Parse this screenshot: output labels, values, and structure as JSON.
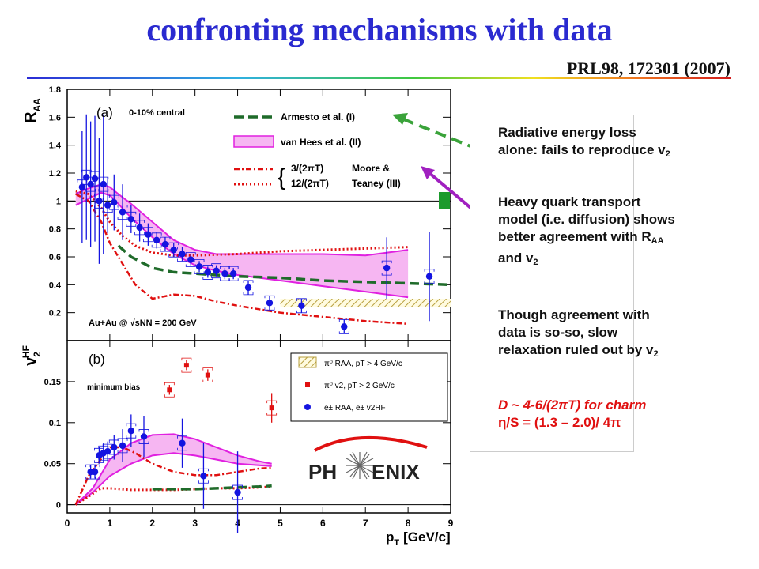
{
  "header": {
    "title": "confronting mechanisms with data",
    "reference": "PRL98, 172301 (2007)"
  },
  "annotations": {
    "note1_line1": "Radiative energy loss",
    "note1_line2": "alone:  fails to reproduce v",
    "note1_sub": "2",
    "note2_line1": "Heavy quark transport",
    "note2_line2": "model (i.e. diffusion) shows",
    "note2_line3": "better agreement with R",
    "note2_sub_raa": "AA",
    "note2_line4": "and v",
    "note2_sub_v2": "2",
    "note3_line1": "Though agreement with",
    "note3_line2": "data is so-so, slow",
    "note3_line3": "relaxation ruled out by v",
    "note3_sub": "2",
    "note4_line1": "D ~ 4-6/(2πT) for charm",
    "note4_line2": "η/S = (1.3 – 2.0)/ 4π"
  },
  "logo": {
    "text_left": "PH",
    "text_right": "ENIX"
  },
  "colors": {
    "title": "#2a2ad0",
    "data_blue": "#1414e0",
    "model_green": "#1f6b2a",
    "model_magenta": "#e020e0",
    "model_red": "#e01010",
    "band_fill": "#f6b6f2",
    "arrow_green": "#3aa33a",
    "arrow_purple": "#a020c0"
  },
  "chart_data": [
    {
      "type": "scatter",
      "panel_label": "(a)",
      "ylabel": "R",
      "ylabel_sub": "AA",
      "centrality": "0-10% central",
      "system_label": "Au+Au @ √sNN = 200 GeV",
      "xlim": [
        0,
        9
      ],
      "ylim": [
        0.0,
        1.8
      ],
      "ytick_labels": [
        "0.2",
        "0.4",
        "0.6",
        "0.8",
        "1",
        "1.2",
        "1.4",
        "1.6",
        "1.8"
      ],
      "legend": [
        {
          "label": "Armesto et al. (I)",
          "style": "green-dashed"
        },
        {
          "label": "van Hees et al. (II)",
          "style": "magenta-band"
        },
        {
          "label": "3/(2πT)",
          "style": "red-dashdot"
        },
        {
          "label": "12/(2πT)",
          "style": "red-dotted"
        },
        {
          "label": "Moore &",
          "style": "text"
        },
        {
          "label": "Teaney (III)",
          "style": "text"
        }
      ],
      "series": [
        {
          "name": "e± RAA",
          "style": "blue-points",
          "x": [
            0.35,
            0.45,
            0.55,
            0.65,
            0.75,
            0.85,
            0.95,
            1.1,
            1.3,
            1.5,
            1.7,
            1.9,
            2.1,
            2.3,
            2.5,
            2.7,
            2.9,
            3.1,
            3.3,
            3.5,
            3.7,
            3.9,
            4.25,
            4.75,
            5.5,
            6.5,
            7.5,
            8.5
          ],
          "y": [
            1.1,
            1.17,
            1.12,
            1.16,
            1.0,
            1.12,
            0.97,
            0.99,
            0.92,
            0.87,
            0.81,
            0.76,
            0.72,
            0.69,
            0.65,
            0.62,
            0.58,
            0.53,
            0.49,
            0.5,
            0.48,
            0.48,
            0.38,
            0.27,
            0.25,
            0.1,
            0.52,
            0.46
          ],
          "yerr": [
            0.4,
            0.45,
            0.45,
            0.45,
            0.45,
            0.5,
            0.2,
            0.2,
            0.2,
            0.1,
            0.1,
            0.08,
            0.06,
            0.05,
            0.05,
            0.05,
            0.04,
            0.04,
            0.04,
            0.04,
            0.04,
            0.04,
            0.05,
            0.05,
            0.05,
            0.05,
            0.22,
            0.32
          ]
        },
        {
          "name": "Armesto et al. (I)",
          "style": "green-dashed",
          "x": [
            1.2,
            1.5,
            2.0,
            2.5,
            3.0,
            4.0,
            5.0,
            6.0,
            7.0,
            8.0,
            9.0
          ],
          "y": [
            0.68,
            0.6,
            0.52,
            0.49,
            0.48,
            0.46,
            0.45,
            0.43,
            0.42,
            0.41,
            0.4
          ]
        },
        {
          "name": "van Hees et al. (II) upper",
          "style": "magenta-band-upper",
          "x": [
            0.2,
            0.4,
            0.6,
            0.8,
            1.0,
            1.2,
            1.5,
            2.0,
            2.5,
            3.0,
            3.5,
            4.0,
            5.0,
            6.0,
            7.0,
            8.0
          ],
          "y": [
            1.05,
            1.08,
            1.1,
            1.12,
            1.1,
            1.05,
            0.98,
            0.85,
            0.72,
            0.65,
            0.62,
            0.62,
            0.62,
            0.62,
            0.61,
            0.65
          ]
        },
        {
          "name": "van Hees et al. (II) lower",
          "style": "magenta-band-lower",
          "x": [
            0.2,
            0.4,
            0.6,
            0.8,
            1.0,
            1.2,
            1.5,
            2.0,
            2.5,
            3.0,
            3.5,
            4.0,
            5.0,
            6.0,
            7.0,
            8.0
          ],
          "y": [
            0.97,
            1.0,
            1.03,
            1.06,
            1.04,
            0.98,
            0.88,
            0.74,
            0.62,
            0.54,
            0.5,
            0.47,
            0.43,
            0.39,
            0.35,
            0.31
          ]
        },
        {
          "name": "3/(2πT)",
          "style": "red-dashdot",
          "x": [
            0.2,
            0.5,
            0.8,
            1.0,
            1.3,
            1.6,
            2.0,
            2.5,
            3.0,
            3.5,
            4.0,
            5.0,
            6.0,
            7.0,
            8.0
          ],
          "y": [
            1.05,
            1.0,
            0.85,
            0.7,
            0.55,
            0.4,
            0.3,
            0.33,
            0.32,
            0.28,
            0.25,
            0.2,
            0.17,
            0.14,
            0.12
          ]
        },
        {
          "name": "12/(2πT)",
          "style": "red-dotted",
          "x": [
            0.2,
            0.5,
            0.8,
            1.0,
            1.3,
            1.6,
            2.0,
            2.5,
            3.0,
            4.0,
            5.0,
            6.0,
            7.0,
            8.0
          ],
          "y": [
            1.07,
            1.05,
            0.95,
            0.85,
            0.75,
            0.68,
            0.63,
            0.61,
            0.61,
            0.62,
            0.64,
            0.65,
            0.66,
            0.67
          ]
        }
      ]
    },
    {
      "type": "scatter",
      "panel_label": "(b)",
      "ylabel": "v",
      "ylabel_sub": "2",
      "ylabel_sup": "HF",
      "centrality": "minimum bias",
      "xlabel": "p",
      "xlabel_sub": "T",
      "xlabel_unit": "[GeV/c]",
      "xlim": [
        0,
        9
      ],
      "ylim": [
        -0.01,
        0.2
      ],
      "xtick_labels": [
        "0",
        "1",
        "2",
        "3",
        "4",
        "5",
        "6",
        "7",
        "8",
        "9"
      ],
      "ytick_labels": [
        "0",
        "0.05",
        "0.1",
        "0.15"
      ],
      "legend": [
        {
          "label": "π⁰ RAA, pT > 4 GeV/c",
          "style": "hatched-band"
        },
        {
          "label": "π⁰ v2, pT > 2 GeV/c",
          "style": "red-points"
        },
        {
          "label": "e± RAA, e± v2HF",
          "style": "blue-points"
        }
      ],
      "series": [
        {
          "name": "e± v2HF",
          "style": "blue-points",
          "x": [
            0.55,
            0.65,
            0.75,
            0.85,
            0.95,
            1.1,
            1.3,
            1.5,
            1.8,
            2.7,
            3.2,
            4.0
          ],
          "y": [
            0.04,
            0.04,
            0.06,
            0.063,
            0.065,
            0.07,
            0.072,
            0.09,
            0.083,
            0.075,
            0.035,
            0.015
          ],
          "yerr": [
            0.008,
            0.008,
            0.01,
            0.012,
            0.012,
            0.015,
            0.02,
            0.02,
            0.025,
            0.03,
            0.04,
            0.05
          ]
        },
        {
          "name": "π⁰ v2",
          "style": "red-points",
          "x": [
            2.4,
            2.8,
            3.3,
            4.8
          ],
          "y": [
            0.14,
            0.17,
            0.158,
            0.118
          ],
          "yerr": [
            0.006,
            0.006,
            0.007,
            0.018
          ]
        },
        {
          "name": "van Hees et al. (II) upper",
          "style": "magenta-band-upper",
          "x": [
            0.2,
            0.6,
            1.0,
            1.5,
            2.0,
            2.5,
            3.0,
            3.5,
            4.0,
            4.5,
            4.8
          ],
          "y": [
            0.0,
            0.02,
            0.055,
            0.075,
            0.085,
            0.086,
            0.08,
            0.07,
            0.06,
            0.053,
            0.05
          ]
        },
        {
          "name": "van Hees et al. (II) lower",
          "style": "magenta-band-lower",
          "x": [
            0.2,
            0.6,
            1.0,
            1.5,
            2.0,
            2.5,
            3.0,
            3.5,
            4.0,
            4.5,
            4.8
          ],
          "y": [
            0.0,
            0.015,
            0.035,
            0.05,
            0.06,
            0.063,
            0.06,
            0.055,
            0.05,
            0.048,
            0.047
          ]
        },
        {
          "name": "3/(2πT)",
          "style": "red-dashdot",
          "x": [
            0.2,
            0.5,
            1.0,
            1.3,
            1.6,
            2.0,
            2.5,
            3.0,
            3.5,
            4.0,
            4.5,
            4.8
          ],
          "y": [
            0.0,
            0.035,
            0.07,
            0.07,
            0.063,
            0.05,
            0.04,
            0.036,
            0.036,
            0.04,
            0.044,
            0.045
          ]
        },
        {
          "name": "12/(2πT)",
          "style": "red-dotted",
          "x": [
            0.2,
            0.5,
            0.8,
            1.0,
            1.5,
            2.0,
            2.5,
            3.0,
            3.5,
            4.0,
            4.5,
            4.8
          ],
          "y": [
            0.0,
            0.01,
            0.02,
            0.02,
            0.018,
            0.018,
            0.018,
            0.019,
            0.02,
            0.02,
            0.021,
            0.022
          ]
        },
        {
          "name": "Armesto et al. (I)",
          "style": "green-dashed",
          "x": [
            2.0,
            2.5,
            3.0,
            3.5,
            4.0,
            4.5,
            4.8
          ],
          "y": [
            0.019,
            0.019,
            0.019,
            0.02,
            0.021,
            0.022,
            0.023
          ]
        }
      ]
    }
  ]
}
